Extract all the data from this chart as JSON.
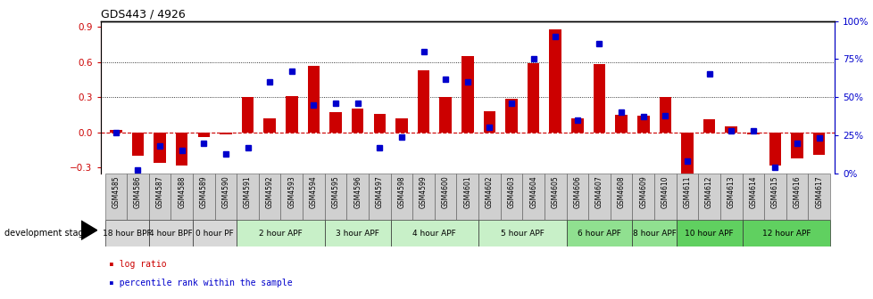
{
  "title": "GDS443 / 4926",
  "samples": [
    "GSM4585",
    "GSM4586",
    "GSM4587",
    "GSM4588",
    "GSM4589",
    "GSM4590",
    "GSM4591",
    "GSM4592",
    "GSM4593",
    "GSM4594",
    "GSM4595",
    "GSM4596",
    "GSM4597",
    "GSM4598",
    "GSM4599",
    "GSM4600",
    "GSM4601",
    "GSM4602",
    "GSM4603",
    "GSM4604",
    "GSM4605",
    "GSM4606",
    "GSM4607",
    "GSM4608",
    "GSM4609",
    "GSM4610",
    "GSM4611",
    "GSM4612",
    "GSM4613",
    "GSM4614",
    "GSM4615",
    "GSM4616",
    "GSM4617"
  ],
  "log_ratio": [
    0.02,
    -0.2,
    -0.26,
    -0.28,
    -0.04,
    -0.02,
    0.3,
    0.12,
    0.31,
    0.57,
    0.17,
    0.2,
    0.16,
    0.12,
    0.53,
    0.3,
    0.65,
    0.18,
    0.29,
    0.59,
    0.88,
    0.12,
    0.58,
    0.15,
    0.14,
    0.3,
    -0.37,
    0.11,
    0.05,
    -0.02,
    -0.28,
    -0.22,
    -0.19
  ],
  "percentile": [
    27,
    2,
    18,
    15,
    20,
    13,
    17,
    60,
    67,
    45,
    46,
    46,
    17,
    24,
    80,
    62,
    60,
    30,
    46,
    75,
    90,
    35,
    85,
    40,
    37,
    38,
    8,
    65,
    28,
    28,
    4,
    20,
    23
  ],
  "stages": [
    {
      "label": "18 hour BPF",
      "start": 0,
      "end": 2,
      "color": "#d8d8d8"
    },
    {
      "label": "4 hour BPF",
      "start": 2,
      "end": 4,
      "color": "#d8d8d8"
    },
    {
      "label": "0 hour PF",
      "start": 4,
      "end": 6,
      "color": "#d8d8d8"
    },
    {
      "label": "2 hour APF",
      "start": 6,
      "end": 10,
      "color": "#c8f0c8"
    },
    {
      "label": "3 hour APF",
      "start": 10,
      "end": 13,
      "color": "#c8f0c8"
    },
    {
      "label": "4 hour APF",
      "start": 13,
      "end": 17,
      "color": "#c8f0c8"
    },
    {
      "label": "5 hour APF",
      "start": 17,
      "end": 21,
      "color": "#c8f0c8"
    },
    {
      "label": "6 hour APF",
      "start": 21,
      "end": 24,
      "color": "#90e090"
    },
    {
      "label": "8 hour APF",
      "start": 24,
      "end": 26,
      "color": "#90e090"
    },
    {
      "label": "10 hour APF",
      "start": 26,
      "end": 29,
      "color": "#60d060"
    },
    {
      "label": "12 hour APF",
      "start": 29,
      "end": 33,
      "color": "#60d060"
    }
  ],
  "ylim": [
    -0.35,
    0.95
  ],
  "yticks_left": [
    -0.3,
    0.0,
    0.3,
    0.6,
    0.9
  ],
  "yticks_right": [
    0,
    25,
    50,
    75,
    100
  ],
  "bar_color": "#cc0000",
  "dot_color": "#0000cc",
  "zero_line_color": "#cc0000",
  "dotted_lines": [
    0.3,
    0.6
  ],
  "sample_box_color": "#d0d0d0",
  "legend_items": [
    {
      "color": "#cc0000",
      "label": "log ratio"
    },
    {
      "color": "#0000cc",
      "label": "percentile rank within the sample"
    }
  ]
}
